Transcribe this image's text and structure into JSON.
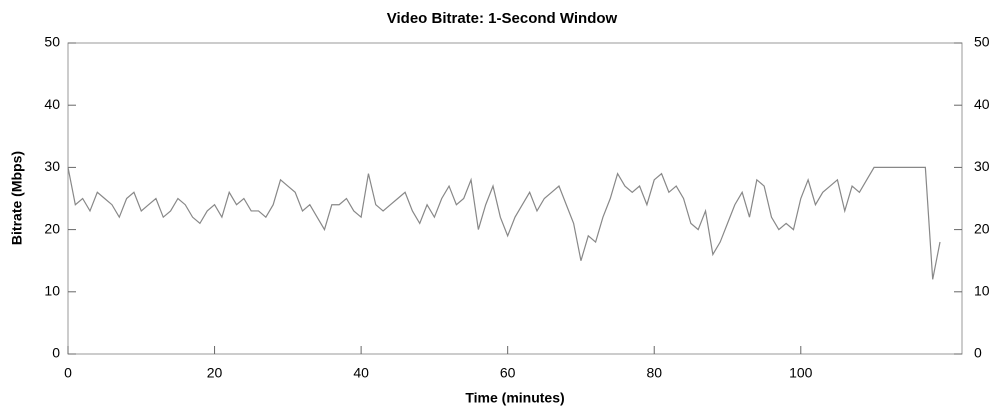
{
  "chart_data": {
    "type": "line",
    "title": "Video Bitrate: 1-Second Window",
    "x_label": "Time (minutes)",
    "y_label": "Bitrate (Mbps)",
    "x": [
      0,
      1,
      2,
      3,
      4,
      5,
      6,
      7,
      8,
      9,
      10,
      11,
      12,
      13,
      14,
      15,
      16,
      17,
      18,
      19,
      20,
      21,
      22,
      23,
      24,
      25,
      26,
      27,
      28,
      29,
      30,
      31,
      32,
      33,
      34,
      35,
      36,
      37,
      38,
      39,
      40,
      41,
      42,
      43,
      44,
      45,
      46,
      47,
      48,
      49,
      50,
      51,
      52,
      53,
      54,
      55,
      56,
      57,
      58,
      59,
      60,
      61,
      62,
      63,
      64,
      65,
      66,
      67,
      68,
      69,
      70,
      71,
      72,
      73,
      74,
      75,
      76,
      77,
      78,
      79,
      80,
      81,
      82,
      83,
      84,
      85,
      86,
      87,
      88,
      89,
      90,
      91,
      92,
      93,
      94,
      95,
      96,
      97,
      98,
      99,
      100,
      101,
      102,
      103,
      104,
      105,
      106,
      107,
      108,
      109,
      110,
      111,
      112,
      113,
      114,
      115,
      116,
      117,
      118,
      119
    ],
    "series": [
      {
        "name": "Bitrate",
        "color": "#888888",
        "values": [
          30,
          24,
          25,
          23,
          26,
          25,
          24,
          22,
          25,
          26,
          23,
          24,
          25,
          22,
          23,
          25,
          24,
          22,
          21,
          23,
          24,
          22,
          26,
          24,
          25,
          23,
          23,
          22,
          24,
          28,
          27,
          26,
          23,
          24,
          22,
          20,
          24,
          24,
          25,
          23,
          22,
          29,
          24,
          23,
          24,
          25,
          26,
          23,
          21,
          24,
          22,
          25,
          27,
          24,
          25,
          28,
          20,
          24,
          27,
          22,
          19,
          22,
          24,
          26,
          23,
          25,
          26,
          27,
          24,
          21,
          15,
          19,
          18,
          22,
          25,
          29,
          27,
          26,
          27,
          24,
          28,
          29,
          26,
          27,
          25,
          21,
          20,
          23,
          16,
          18,
          21,
          24,
          26,
          22,
          28,
          27,
          22,
          20,
          21,
          20,
          25,
          28,
          24,
          26,
          27,
          28,
          23,
          27,
          26,
          28,
          30,
          30,
          30,
          30,
          30,
          30,
          30,
          30,
          12,
          18
        ]
      }
    ],
    "xlim": [
      0,
      122
    ],
    "xticks": [
      0,
      20,
      40,
      60,
      80,
      100
    ],
    "ylim": [
      0,
      50
    ],
    "yticks": [
      0,
      10,
      20,
      30,
      40,
      50
    ],
    "y2lim": [
      0,
      50
    ],
    "y2ticks": [
      0,
      10,
      20,
      30,
      40,
      50
    ]
  }
}
